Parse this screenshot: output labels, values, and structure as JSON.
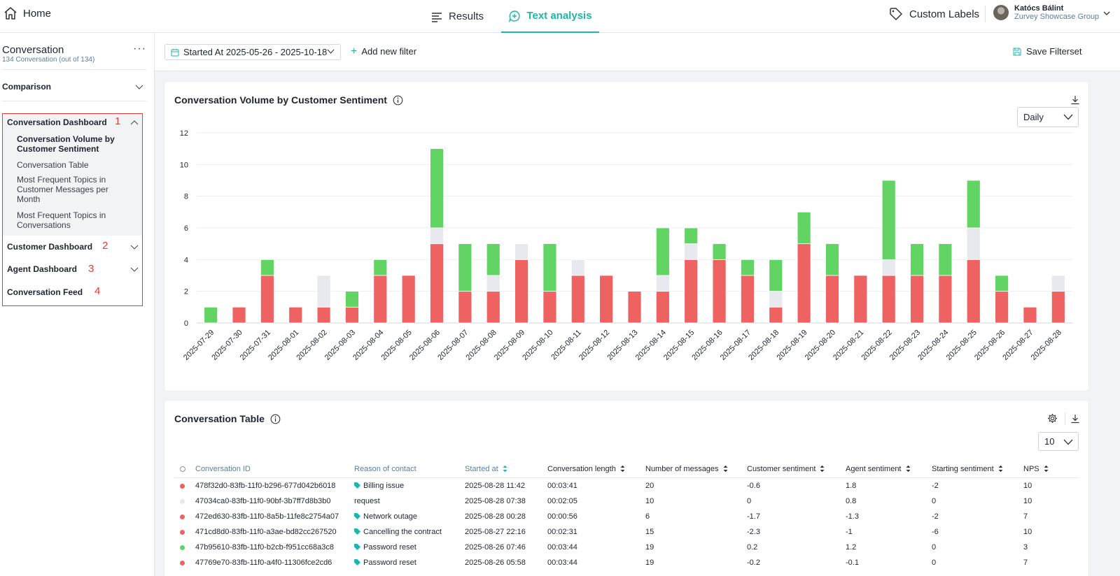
{
  "topbar": {
    "home_label": "Home",
    "tabs": [
      {
        "label": "Results",
        "icon": "list-icon",
        "active": false
      },
      {
        "label": "Text analysis",
        "icon": "chat-plus-icon",
        "active": true
      }
    ],
    "custom_labels": "Custom Labels",
    "user": {
      "name": "Katócs Bálint",
      "group": "Zurvey Showcase Group"
    }
  },
  "sidebar": {
    "title": "Conversation",
    "subtitle": "134 Conversation (out of 134)",
    "comparison": "Comparison",
    "groups": [
      {
        "label": "Conversation Dashboard",
        "number": "1",
        "expanded": true,
        "items": [
          {
            "label": "Conversation Volume by Customer Sentiment",
            "active": true
          },
          {
            "label": "Conversation Table",
            "active": false
          },
          {
            "label": "Most Frequent Topics in Customer Messages per Month",
            "active": false
          },
          {
            "label": "Most Frequent Topics in Conversations",
            "active": false
          }
        ]
      },
      {
        "label": "Customer Dashboard",
        "number": "2",
        "expanded": false
      },
      {
        "label": "Agent Dashboard",
        "number": "3",
        "expanded": false
      },
      {
        "label": "Conversation Feed",
        "number": "4",
        "expanded": false
      }
    ]
  },
  "filterbar": {
    "date_filter": "Started At 2025-05-26 - 2025-10-18",
    "add_filter": "Add new filter",
    "save_filterset": "Save Filterset"
  },
  "colors": {
    "accent": "#1fb5a8",
    "negative": "#ef6262",
    "neutral": "#e8e8ef",
    "positive": "#62d464",
    "highlight": "#e53935"
  },
  "chart_card": {
    "title": "Conversation Volume by Customer Sentiment",
    "granularity": "Daily"
  },
  "chart_data": {
    "type": "bar",
    "stacked": true,
    "categories": [
      "2025-07-29",
      "2025-07-30",
      "2025-07-31",
      "2025-08-01",
      "2025-08-02",
      "2025-08-03",
      "2025-08-04",
      "2025-08-05",
      "2025-08-06",
      "2025-08-07",
      "2025-08-08",
      "2025-08-09",
      "2025-08-10",
      "2025-08-11",
      "2025-08-12",
      "2025-08-13",
      "2025-08-14",
      "2025-08-15",
      "2025-08-16",
      "2025-08-17",
      "2025-08-18",
      "2025-08-19",
      "2025-08-20",
      "2025-08-21",
      "2025-08-22",
      "2025-08-23",
      "2025-08-24",
      "2025-08-25",
      "2025-08-26",
      "2025-08-27",
      "2025-08-28"
    ],
    "series": [
      {
        "color": "#ef6262",
        "values": [
          0,
          1,
          3,
          1,
          1,
          1,
          3,
          3,
          5,
          2,
          2,
          4,
          2,
          3,
          3,
          2,
          2,
          4,
          4,
          3,
          1,
          5,
          3,
          3,
          3,
          3,
          3,
          4,
          2,
          1,
          2
        ]
      },
      {
        "color": "#e8e8ef",
        "values": [
          0,
          0,
          0,
          0,
          2,
          0,
          0,
          0,
          1,
          0,
          1,
          1,
          0,
          1,
          0,
          0,
          1,
          1,
          0,
          0,
          1,
          0,
          0,
          0,
          1,
          0,
          0,
          2,
          0,
          0,
          1
        ]
      },
      {
        "color": "#62d464",
        "values": [
          1,
          0,
          1,
          0,
          0,
          1,
          1,
          0,
          5,
          3,
          2,
          0,
          3,
          0,
          0,
          0,
          3,
          1,
          1,
          1,
          2,
          2,
          2,
          0,
          5,
          2,
          2,
          3,
          1,
          0,
          0
        ]
      }
    ],
    "ylim": [
      0,
      12
    ],
    "yticks": [
      0,
      2,
      4,
      6,
      8,
      10,
      12
    ],
    "grid": true
  },
  "table_card": {
    "title": "Conversation Table",
    "page_size": "10",
    "columns": [
      "Conversation ID",
      "Reason of contact",
      "Started at",
      "Conversation length",
      "Number of messages",
      "Customer sentiment",
      "Agent sentiment",
      "Starting sentiment",
      "NPS"
    ],
    "rows": [
      {
        "status": "negative",
        "id": "478f32d0-83fb-11f0-b296-677d042b6018",
        "reason": "Billing issue",
        "tagged": true,
        "started": "2025-08-28 11:42",
        "length": "00:03:41",
        "messages": "20",
        "customer": "-0.6",
        "agent": "1.8",
        "starting": "-2",
        "nps": "10"
      },
      {
        "status": "neutral",
        "id": "47034ca0-83fb-11f0-90bf-3b7ff7d8b3b0",
        "reason": "request",
        "tagged": false,
        "started": "2025-08-28 07:38",
        "length": "00:02:05",
        "messages": "10",
        "customer": "0",
        "agent": "0.8",
        "starting": "0",
        "nps": "10"
      },
      {
        "status": "negative",
        "id": "472ed630-83fb-11f0-8a5b-11fe8c2754a07",
        "reason": "Network outage",
        "tagged": true,
        "started": "2025-08-28 00:28",
        "length": "00:00:56",
        "messages": "6",
        "customer": "-1.7",
        "agent": "-1.3",
        "starting": "-2",
        "nps": "7"
      },
      {
        "status": "negative",
        "id": "471cd8d0-83fb-11f0-a3ae-bd82cc267520",
        "reason": "Cancelling the contract",
        "tagged": true,
        "started": "2025-08-27 22:16",
        "length": "00:02:31",
        "messages": "15",
        "customer": "-2.3",
        "agent": "-1",
        "starting": "-6",
        "nps": "10"
      },
      {
        "status": "positive",
        "id": "47b95610-83fb-11f0-b2cb-f951cc68a3c8",
        "reason": "Password reset",
        "tagged": true,
        "started": "2025-08-26 07:46",
        "length": "00:03:44",
        "messages": "19",
        "customer": "0.2",
        "agent": "1.2",
        "starting": "0",
        "nps": "3"
      },
      {
        "status": "negative",
        "id": "47769e70-83fb-11f0-a4f0-11306fce2cd6",
        "reason": "Password reset",
        "tagged": true,
        "started": "2025-08-26 05:58",
        "length": "00:03:44",
        "messages": "19",
        "customer": "-0.2",
        "agent": "-0.1",
        "starting": "0",
        "nps": "7"
      }
    ]
  }
}
